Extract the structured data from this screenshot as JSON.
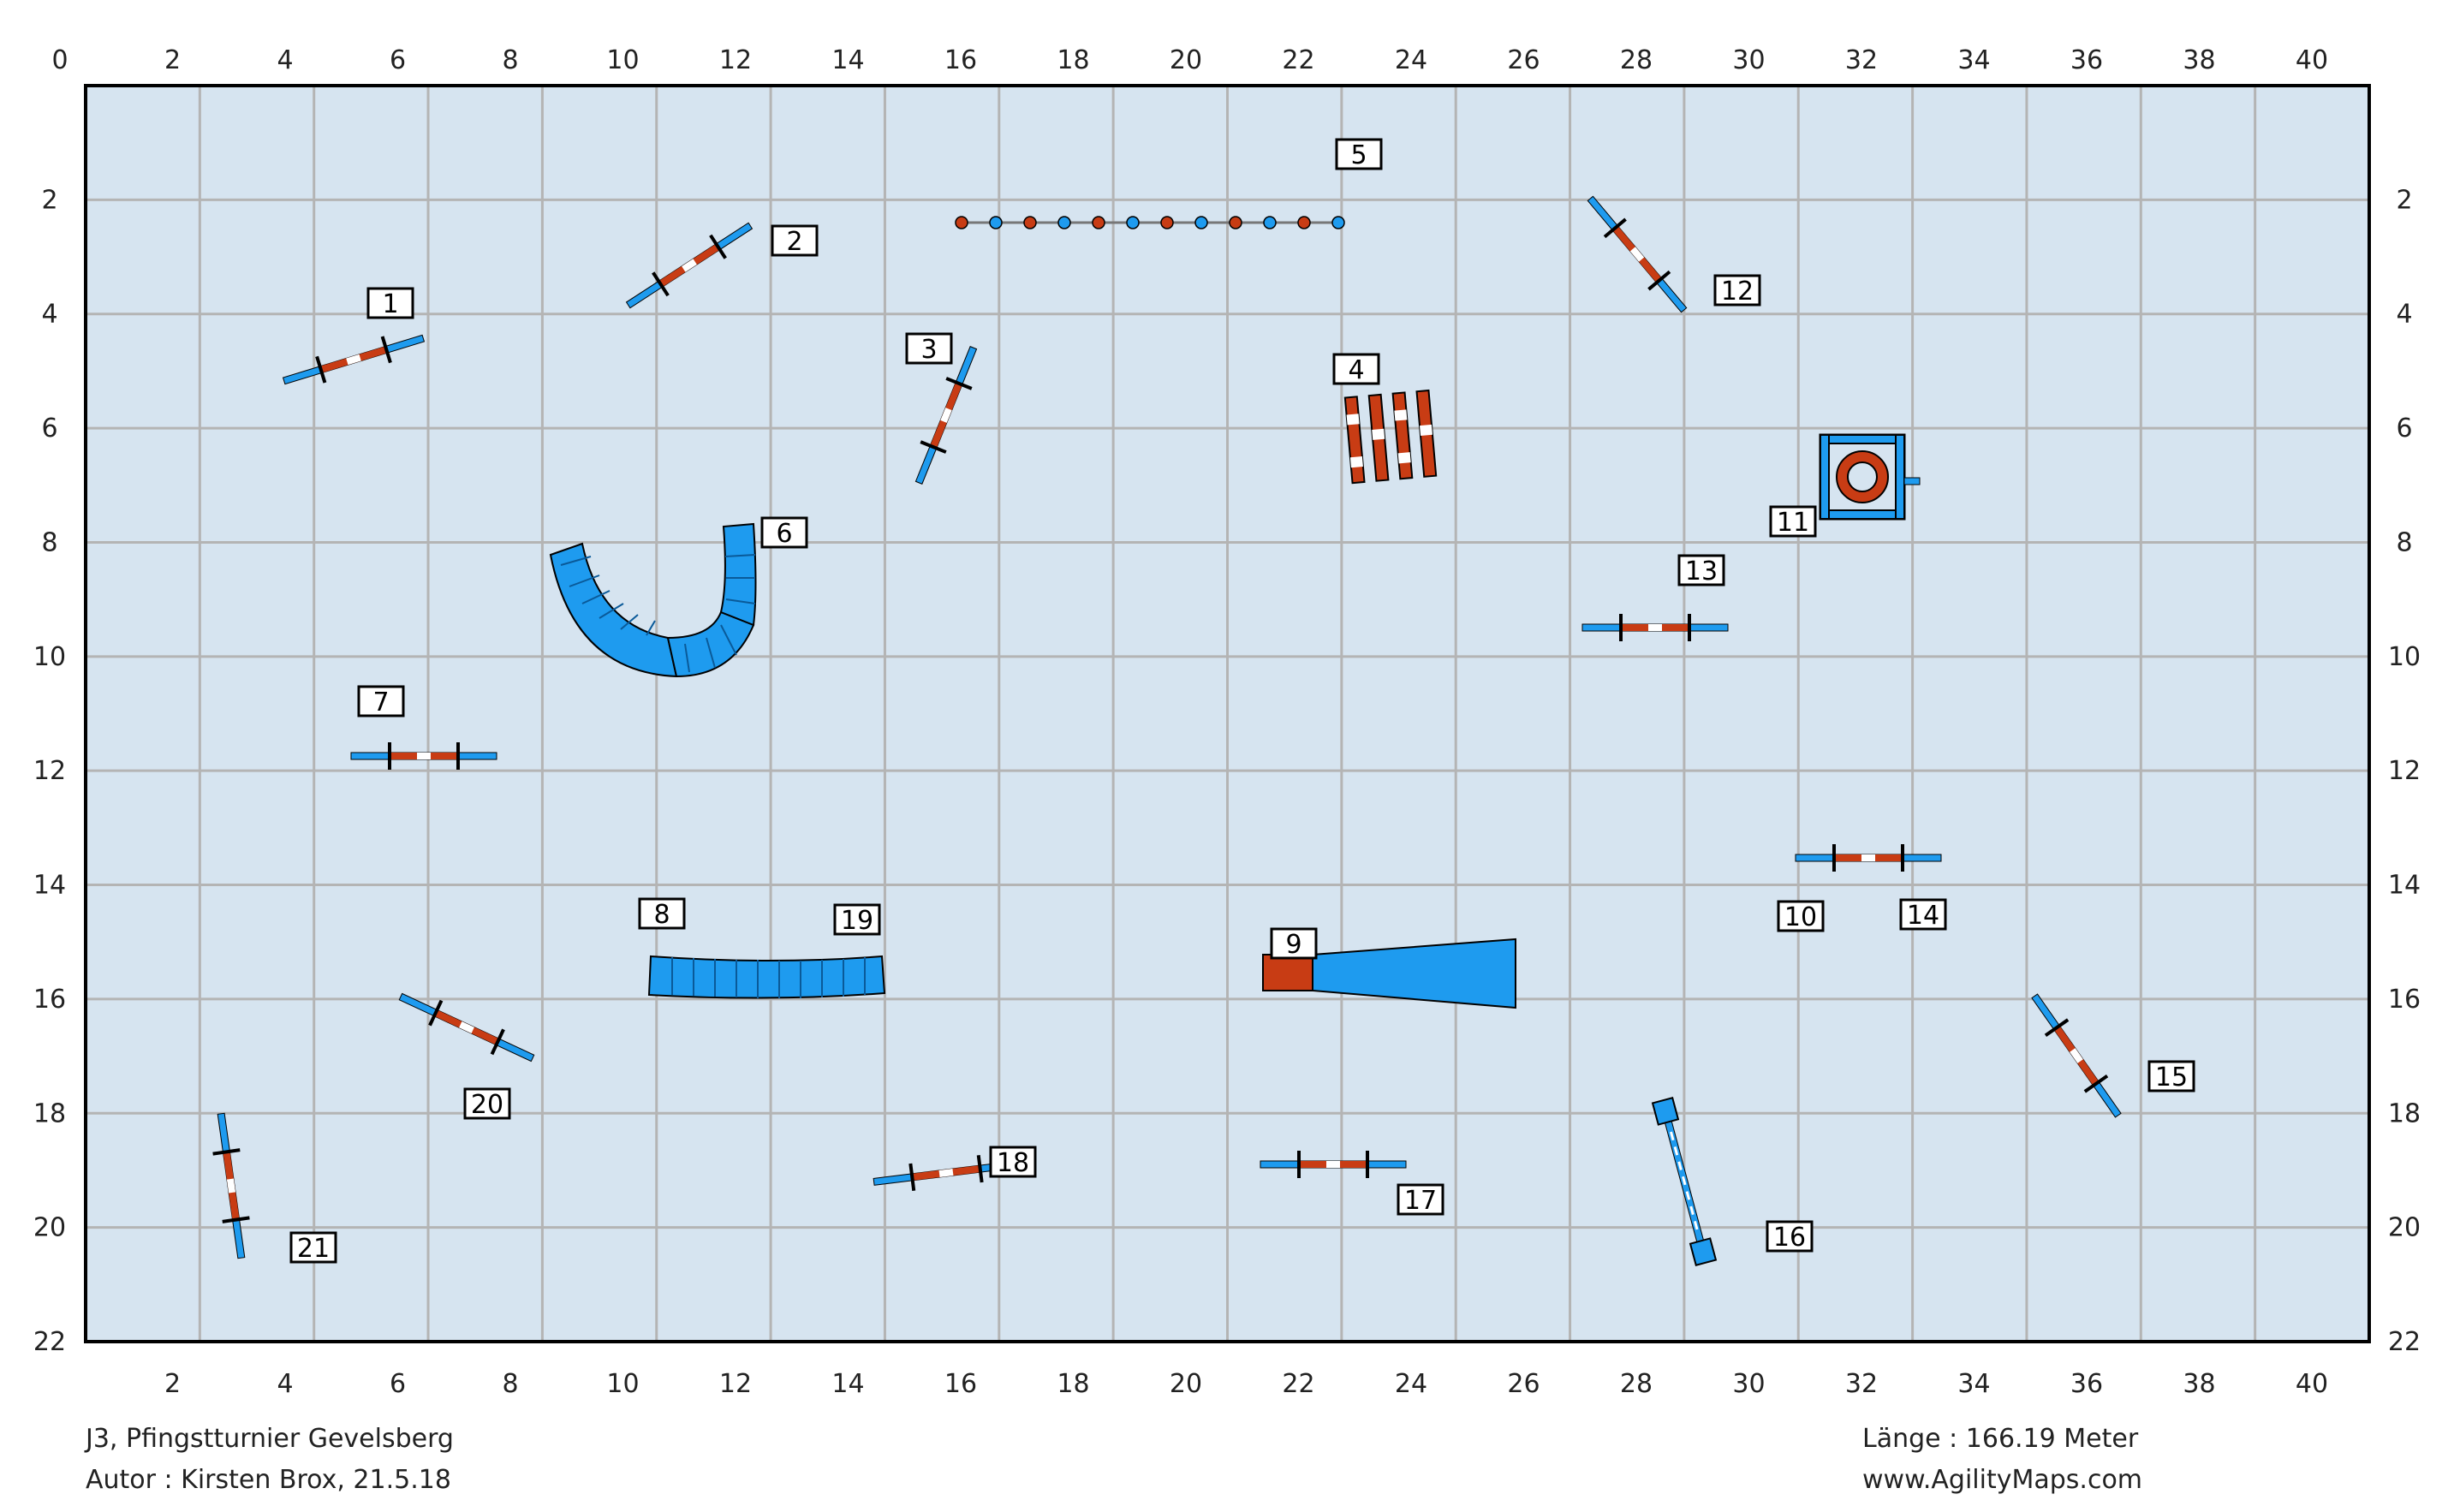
{
  "course": {
    "width_m": 40,
    "height_m": 22,
    "x_ticks": [
      "0",
      "2",
      "4",
      "6",
      "8",
      "10",
      "12",
      "14",
      "16",
      "18",
      "20",
      "22",
      "24",
      "26",
      "28",
      "30",
      "32",
      "34",
      "36",
      "38",
      "40"
    ],
    "x_ticks_bottom": [
      "2",
      "4",
      "6",
      "8",
      "10",
      "12",
      "14",
      "16",
      "18",
      "20",
      "22",
      "24",
      "26",
      "28",
      "30",
      "32",
      "34",
      "36",
      "38",
      "40"
    ],
    "y_ticks": [
      "2",
      "4",
      "6",
      "8",
      "10",
      "12",
      "14",
      "16",
      "18",
      "20",
      "22"
    ],
    "colors": {
      "field": "#d6e4f0",
      "grid": "#b4b4b4",
      "blue": "#1e9bef",
      "red": "#c83c14",
      "frame": "#000000"
    }
  },
  "obstacles": [
    {
      "num": "1",
      "type": "jump",
      "x": 4.1,
      "y": 4.9
    },
    {
      "num": "2",
      "type": "jump",
      "x": 10.5,
      "y": 3.3
    },
    {
      "num": "3",
      "type": "jump",
      "x": 15.0,
      "y": 5.8
    },
    {
      "num": "4",
      "type": "wall",
      "x": 22.3,
      "y": 6.0
    },
    {
      "num": "5",
      "type": "weave",
      "x": 18.7,
      "y": 2.4
    },
    {
      "num": "6",
      "type": "tunnel",
      "x": 10.0,
      "y": 9.5
    },
    {
      "num": "7",
      "type": "jump",
      "x": 5.5,
      "y": 11.7
    },
    {
      "num": "8",
      "type": "tunnel",
      "x": 11.9,
      "y": 15.6
    },
    {
      "num": "9",
      "type": "chute",
      "x": 20.8,
      "y": 15.6
    },
    {
      "num": "10",
      "type": "jump",
      "x": 31.2,
      "y": 13.6
    },
    {
      "num": "11",
      "type": "tire",
      "x": 30.8,
      "y": 6.9
    },
    {
      "num": "12",
      "type": "jump",
      "x": 27.3,
      "y": 3.8
    },
    {
      "num": "13",
      "type": "jump",
      "x": 28.2,
      "y": 9.5
    },
    {
      "num": "14",
      "type": "jump",
      "x": 31.2,
      "y": 13.6
    },
    {
      "num": "15",
      "type": "jump",
      "x": 34.9,
      "y": 17.5
    },
    {
      "num": "16",
      "type": "seesaw",
      "x": 28.0,
      "y": 19.5
    },
    {
      "num": "17",
      "type": "jump",
      "x": 22.0,
      "y": 19.2
    },
    {
      "num": "18",
      "type": "jump",
      "x": 15.2,
      "y": 18.9
    },
    {
      "num": "19",
      "type": "tunnel",
      "x": 11.9,
      "y": 15.6
    },
    {
      "num": "20",
      "type": "jump",
      "x": 6.8,
      "y": 17.4
    },
    {
      "num": "21",
      "type": "jump",
      "x": 2.7,
      "y": 19.6
    }
  ],
  "footer": {
    "title": "J3, Pfingstturnier Gevelsberg",
    "author": "Autor : Kirsten Brox, 21.5.18",
    "length": "Länge : 166.19 Meter",
    "website": "www.AgilityMaps.com"
  }
}
